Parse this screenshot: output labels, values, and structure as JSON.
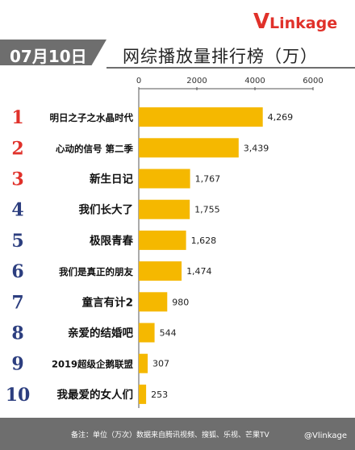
{
  "brand": {
    "logo_v": "V",
    "logo_rest": "Linkage"
  },
  "header": {
    "date": "07月10日",
    "title": "网综播放量排行榜（万）"
  },
  "footer": {
    "note": "备注：单位（万次）数据来自腾讯视频、搜狐、乐视、芒果TV",
    "handle": "@Vlinkage"
  },
  "colors": {
    "bar": "#f5b800",
    "rank_red": "#e0312a",
    "rank_blue": "#2c3e7f",
    "band": "#6e6e6e"
  },
  "chart_data": {
    "type": "bar",
    "orientation": "horizontal",
    "title": "网综播放量排行榜（万）",
    "xlim": [
      0,
      6000
    ],
    "x_ticks": [
      0,
      2000,
      4000,
      6000
    ],
    "ranks": [
      "1",
      "2",
      "3",
      "4",
      "5",
      "6",
      "7",
      "8",
      "9",
      "10"
    ],
    "categories": [
      "明日之子之水晶时代",
      "心动的信号 第二季",
      "新生日记",
      "我们长大了",
      "极限青春",
      "我们是真正的朋友",
      "童言有计2",
      "亲爱的结婚吧",
      "2019超级企鹅联盟",
      "我最爱的女人们"
    ],
    "values": [
      4269,
      3439,
      1767,
      1755,
      1628,
      1474,
      980,
      544,
      307,
      253
    ],
    "value_labels": [
      "4,269",
      "3,439",
      "1,767",
      "1,755",
      "1,628",
      "1,474",
      "980",
      "544",
      "307",
      "253"
    ]
  }
}
